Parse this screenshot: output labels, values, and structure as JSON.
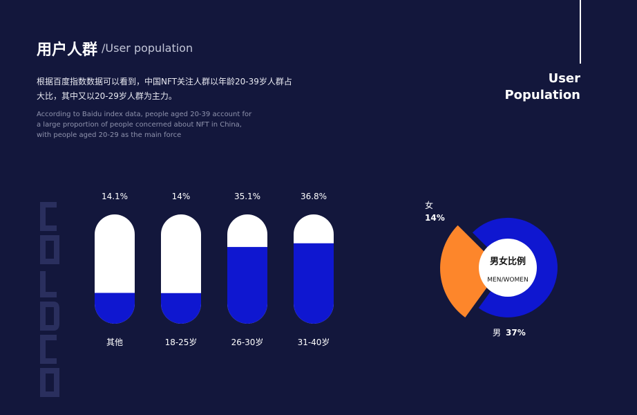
{
  "header": {
    "title_cn": "用户人群",
    "title_en": "/User population",
    "desc_cn": "根据百度指数数据可以看到，中国NFT关注人群以年龄20-39岁人群占大比，其中又以20-29岁人群为主力。",
    "desc_en": "According to Baidu index data, people aged 20-39 account for a large proportion of people concerned about NFT in China, with people aged 20-29 as the main force"
  },
  "side_title": {
    "line1": "User",
    "line2": "Population"
  },
  "colors": {
    "background": "#13173c",
    "blue": "#0f17d0",
    "orange": "#fd862b",
    "white": "#ffffff"
  },
  "chart_data": [
    {
      "type": "bar",
      "categories": [
        "其他",
        "18-25岁",
        "26-30岁",
        "31-40岁"
      ],
      "values": [
        14.1,
        14,
        35.1,
        36.8
      ],
      "value_labels": [
        "14.1%",
        "14%",
        "35.1%",
        "36.8%"
      ],
      "ylim": [
        0,
        100
      ]
    },
    {
      "type": "pie",
      "center_title": "男女比例",
      "center_subtitle": "MEN/WOMEN",
      "slices": [
        {
          "name": "女",
          "value": 14,
          "label": "14%",
          "color": "#fd862b"
        },
        {
          "name": "男",
          "value": 37,
          "label": "37%",
          "color": "#0f17d0"
        }
      ]
    }
  ]
}
